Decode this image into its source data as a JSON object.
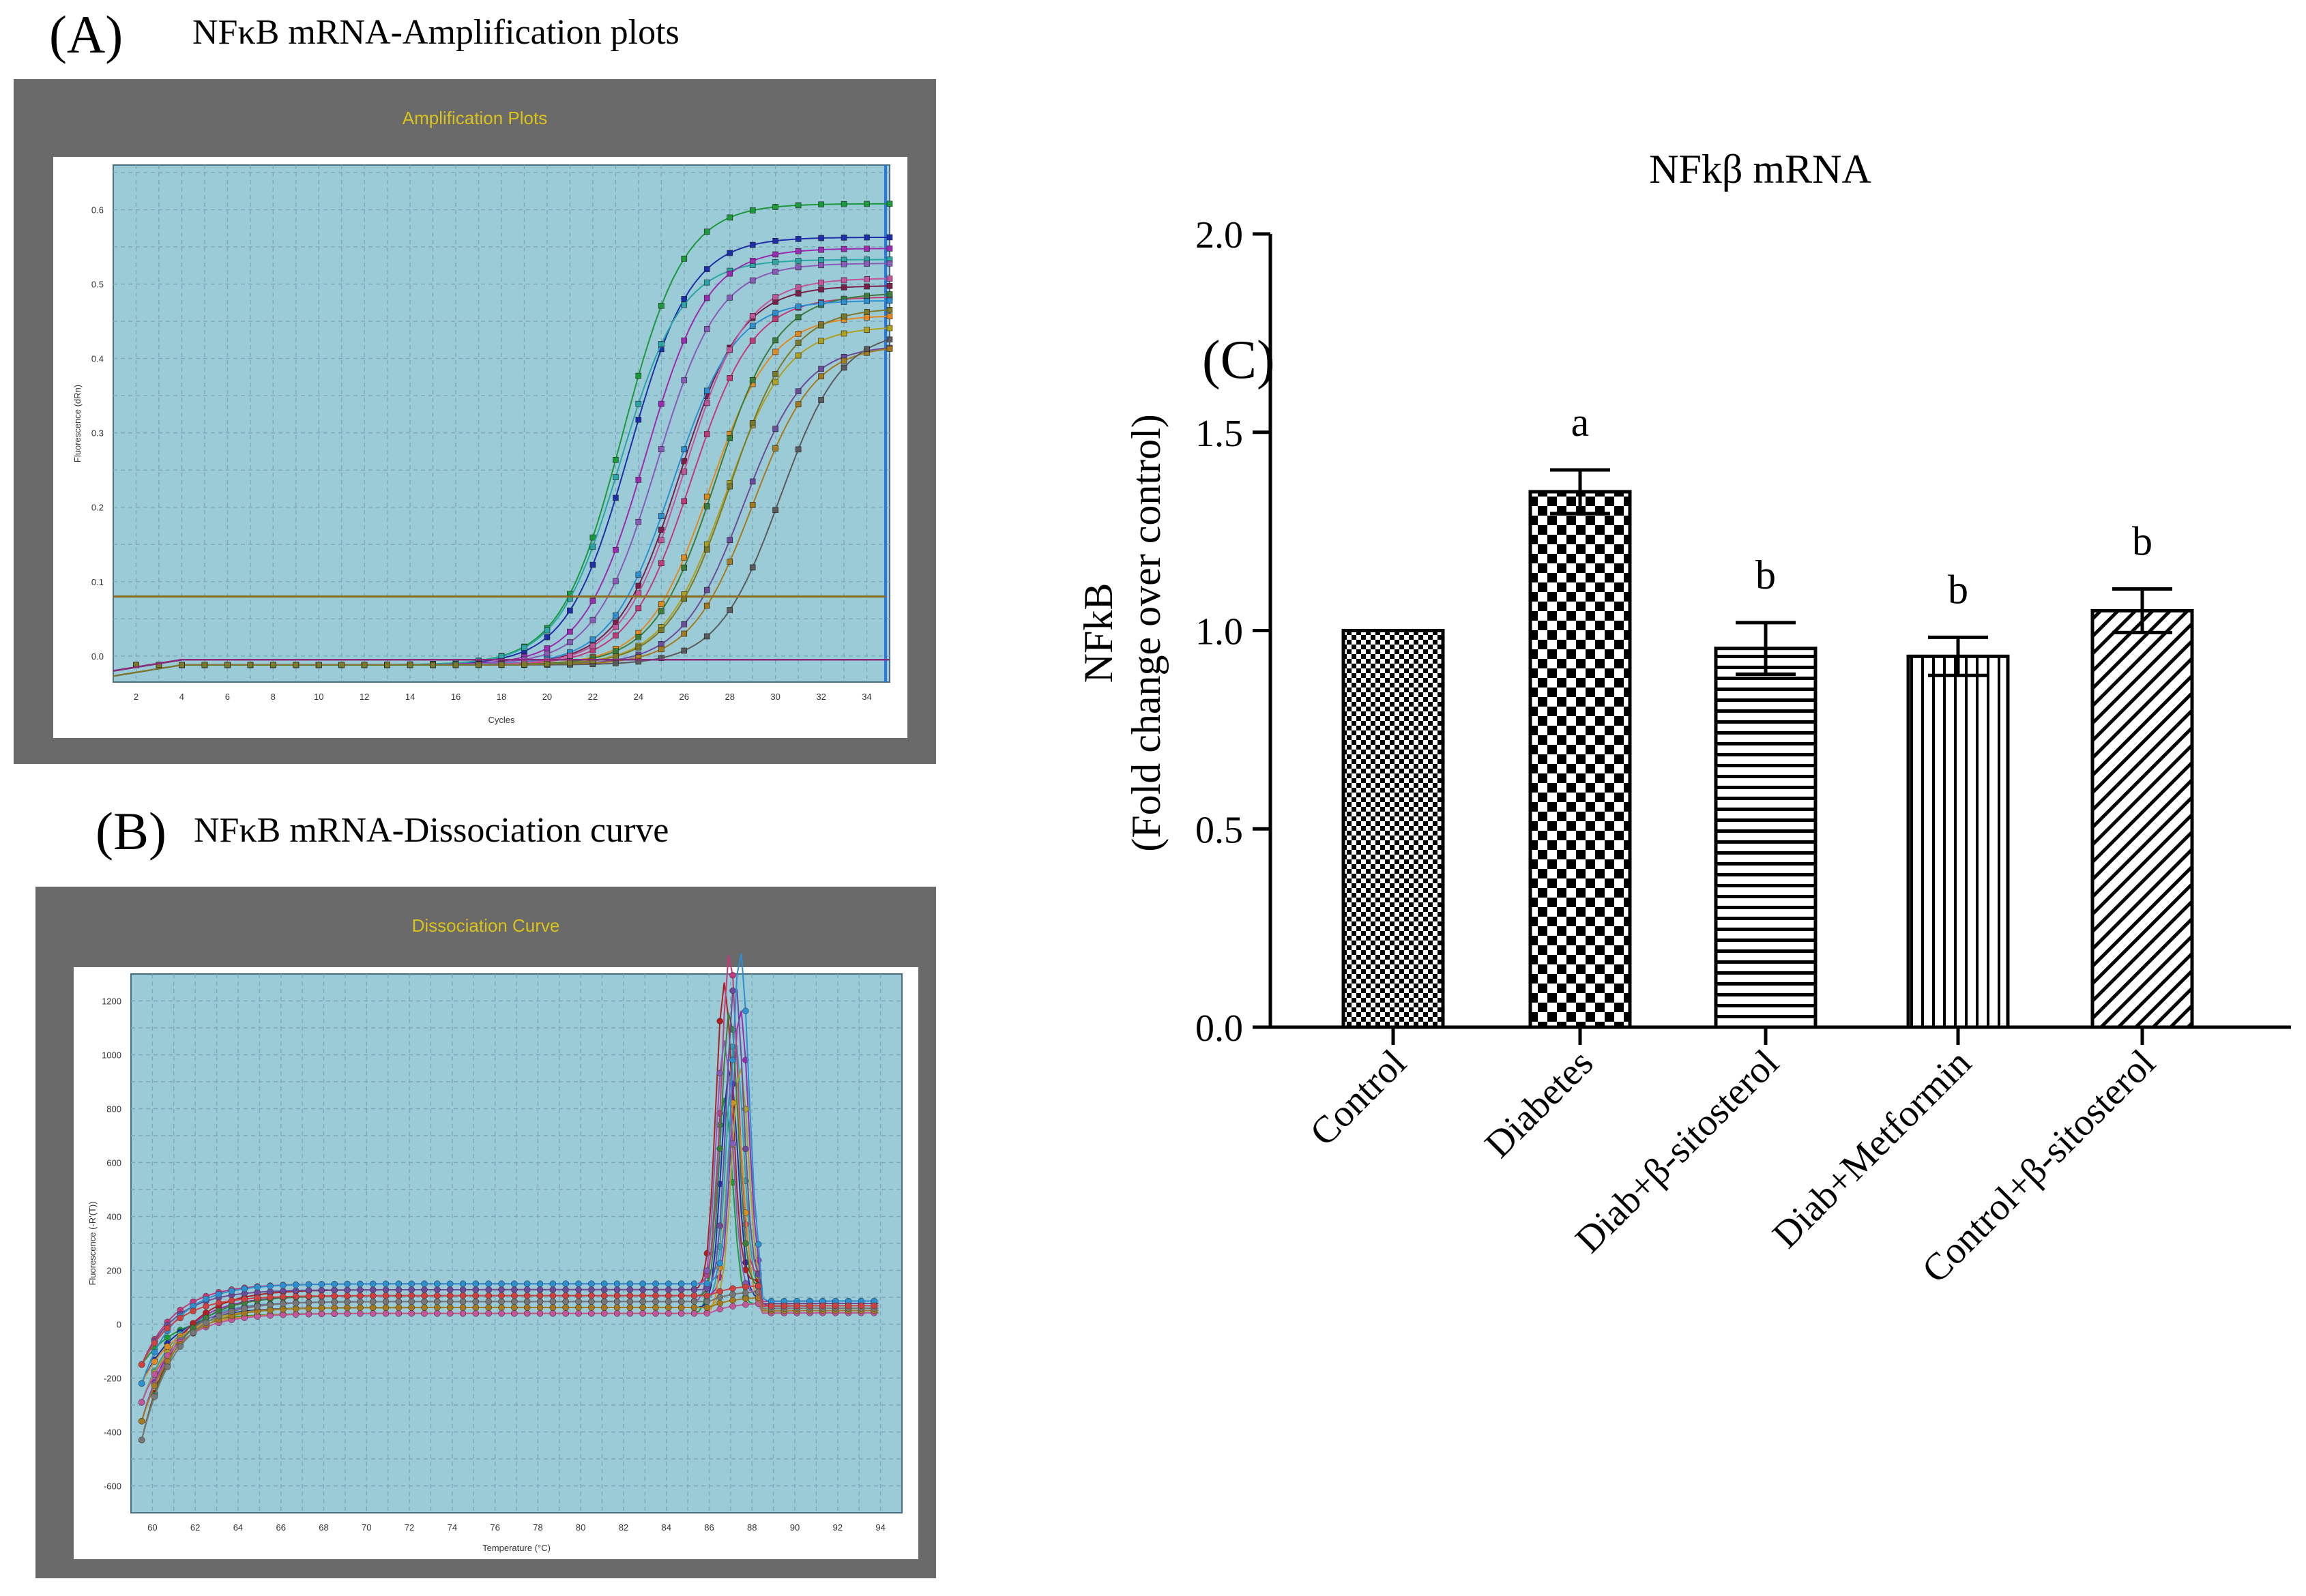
{
  "panel_a": {
    "letter": "(A)",
    "title": "NFκB mRNA-Amplification plots",
    "window_title": "Amplification Plots",
    "x_axis_label": "Cycles",
    "y_axis_label": "Fluorescence (dRn)",
    "x_ticks": [
      "2",
      "4",
      "6",
      "8",
      "10",
      "12",
      "14",
      "16",
      "18",
      "20",
      "22",
      "24",
      "26",
      "28",
      "30",
      "32",
      "34"
    ],
    "y_ticks": [
      "0.0",
      "0.1",
      "0.2",
      "0.3",
      "0.4",
      "0.5",
      "0.6"
    ],
    "threshold": 0.08,
    "plot_bg": "#9ccbd8",
    "threshold_color": "#8a6a1c"
  },
  "panel_b": {
    "letter": "(B)",
    "title": "NFκB mRNA-Dissociation curve",
    "window_title": "Dissociation Curve",
    "x_axis_label": "Temperature (°C)",
    "y_axis_label": "Fluorescence (-R'(T))",
    "x_ticks": [
      "60",
      "62",
      "64",
      "66",
      "68",
      "70",
      "72",
      "74",
      "76",
      "78",
      "80",
      "82",
      "84",
      "86",
      "88",
      "90",
      "92",
      "94"
    ],
    "y_ticks": [
      "-600",
      "-400",
      "-200",
      "0",
      "200",
      "400",
      "600",
      "800",
      "1000",
      "1200"
    ],
    "plot_bg": "#9ccbd8"
  },
  "panel_c": {
    "letter": "(C)",
    "chart_data": {
      "type": "bar",
      "title": "NFkβ mRNA",
      "ylabel_line1": "NFkB",
      "ylabel_line2": "(Fold change over control)",
      "xlabel": "",
      "ylim": [
        0,
        2.0
      ],
      "y_ticks": [
        "0.0",
        "0.5",
        "1.0",
        "1.5",
        "2.0"
      ],
      "categories": [
        "Control",
        "Diabetes",
        "Diab+β-sitosterol",
        "Diab+Metformin",
        "Control+β-sitosterol"
      ],
      "values": [
        1.0,
        1.35,
        0.955,
        0.935,
        1.05
      ],
      "errors": [
        0.0,
        0.055,
        0.065,
        0.048,
        0.055
      ],
      "significance": [
        "",
        "a",
        "b",
        "b",
        "b"
      ],
      "patterns": [
        "fine-check",
        "large-check",
        "horizontal-lines",
        "vertical-lines",
        "diagonal-lines"
      ]
    }
  }
}
